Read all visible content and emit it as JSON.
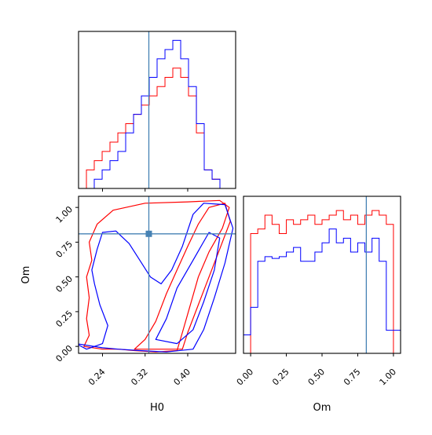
{
  "colors": {
    "series_a": "#ff0000",
    "series_b": "#0000ff",
    "truth": "#4682b4",
    "frame": "#000000"
  },
  "chart_data": [
    {
      "type": "histogram",
      "panel": "H0-marginal",
      "x_range": [
        0.195,
        0.49
      ],
      "bin_edges": [
        0.195,
        0.2098,
        0.2245,
        0.2393,
        0.254,
        0.2688,
        0.2835,
        0.2983,
        0.313,
        0.3278,
        0.3425,
        0.3573,
        0.372,
        0.3868,
        0.4015,
        0.4163,
        0.431,
        0.4458,
        0.4605,
        0.4753,
        0.49
      ],
      "series": [
        {
          "color_key": "series_a",
          "values": [
            0,
            2,
            3,
            4,
            5,
            6,
            7,
            8,
            9,
            10,
            11,
            12,
            13,
            12,
            10,
            6,
            2,
            1,
            0,
            0
          ]
        },
        {
          "color_key": "series_b",
          "values": [
            0,
            0,
            1,
            2,
            3,
            4,
            6,
            8,
            10,
            12,
            14,
            15,
            16,
            14,
            11,
            7,
            2,
            1,
            0,
            0
          ]
        }
      ],
      "truth_x": 0.327,
      "x_ticks": [
        0.24,
        0.32,
        0.4
      ]
    },
    {
      "type": "contour",
      "panel": "H0-Om-joint",
      "x_range": [
        0.195,
        0.49
      ],
      "y_range": [
        -0.05,
        1.08
      ],
      "xlabel": "H0",
      "ylabel": "Om",
      "x_ticks": [
        0.24,
        0.32,
        0.4
      ],
      "x_tick_labels": [
        "0.24",
        "0.32",
        "0.40"
      ],
      "y_ticks": [
        0.0,
        0.25,
        0.5,
        0.75,
        1.0
      ],
      "y_tick_labels": [
        "0.00",
        "0.25",
        "0.50",
        "0.75",
        "1.00"
      ],
      "truth": {
        "x": 0.327,
        "y": 0.81
      },
      "contours": [
        {
          "color_key": "series_a",
          "points": [
            [
              0.205,
              0.0
            ],
            [
              0.215,
              0.08
            ],
            [
              0.21,
              0.2
            ],
            [
              0.215,
              0.35
            ],
            [
              0.21,
              0.5
            ],
            [
              0.22,
              0.62
            ],
            [
              0.215,
              0.75
            ],
            [
              0.23,
              0.88
            ],
            [
              0.26,
              0.98
            ],
            [
              0.32,
              1.03
            ],
            [
              0.4,
              1.04
            ],
            [
              0.46,
              1.05
            ],
            [
              0.478,
              1.0
            ],
            [
              0.465,
              0.85
            ],
            [
              0.44,
              0.68
            ],
            [
              0.42,
              0.5
            ],
            [
              0.405,
              0.3
            ],
            [
              0.39,
              0.1
            ],
            [
              0.38,
              -0.03
            ],
            [
              0.34,
              -0.04
            ],
            [
              0.3,
              -0.03
            ],
            [
              0.27,
              -0.02
            ],
            [
              0.24,
              -0.02
            ],
            [
              0.205,
              0.0
            ]
          ]
        },
        {
          "color_key": "series_a",
          "points": [
            [
              0.3,
              -0.02
            ],
            [
              0.32,
              0.05
            ],
            [
              0.34,
              0.18
            ],
            [
              0.36,
              0.38
            ],
            [
              0.38,
              0.55
            ],
            [
              0.4,
              0.72
            ],
            [
              0.42,
              0.88
            ],
            [
              0.44,
              1.0
            ],
            [
              0.47,
              1.03
            ],
            [
              0.48,
              0.9
            ],
            [
              0.46,
              0.7
            ],
            [
              0.44,
              0.5
            ],
            [
              0.42,
              0.3
            ],
            [
              0.4,
              0.1
            ],
            [
              0.39,
              -0.02
            ],
            [
              0.3,
              -0.02
            ]
          ]
        },
        {
          "color_key": "series_b",
          "points": [
            [
              0.19,
              0.02
            ],
            [
              0.21,
              -0.02
            ],
            [
              0.24,
              0.02
            ],
            [
              0.25,
              0.15
            ],
            [
              0.235,
              0.3
            ],
            [
              0.225,
              0.45
            ],
            [
              0.22,
              0.55
            ],
            [
              0.23,
              0.7
            ],
            [
              0.24,
              0.82
            ],
            [
              0.265,
              0.83
            ],
            [
              0.29,
              0.74
            ],
            [
              0.31,
              0.62
            ],
            [
              0.33,
              0.5
            ],
            [
              0.35,
              0.45
            ],
            [
              0.37,
              0.55
            ],
            [
              0.39,
              0.72
            ],
            [
              0.41,
              0.95
            ],
            [
              0.43,
              1.03
            ],
            [
              0.47,
              1.02
            ],
            [
              0.485,
              0.85
            ],
            [
              0.47,
              0.6
            ],
            [
              0.45,
              0.35
            ],
            [
              0.43,
              0.12
            ],
            [
              0.41,
              -0.02
            ],
            [
              0.36,
              -0.04
            ],
            [
              0.31,
              -0.03
            ],
            [
              0.27,
              -0.02
            ],
            [
              0.24,
              -0.01
            ],
            [
              0.19,
              0.02
            ]
          ]
        },
        {
          "color_key": "series_b",
          "points": [
            [
              0.34,
              0.05
            ],
            [
              0.36,
              0.2
            ],
            [
              0.38,
              0.42
            ],
            [
              0.41,
              0.62
            ],
            [
              0.44,
              0.82
            ],
            [
              0.46,
              0.78
            ],
            [
              0.45,
              0.55
            ],
            [
              0.43,
              0.32
            ],
            [
              0.41,
              0.12
            ],
            [
              0.38,
              0.02
            ],
            [
              0.34,
              0.05
            ]
          ]
        }
      ]
    },
    {
      "type": "histogram",
      "panel": "Om-marginal",
      "x_range": [
        -0.05,
        1.05
      ],
      "xlabel": "Om",
      "bin_edges": [
        -0.05,
        0.0,
        0.05,
        0.1,
        0.15,
        0.2,
        0.25,
        0.3,
        0.35,
        0.4,
        0.45,
        0.5,
        0.55,
        0.6,
        0.65,
        0.7,
        0.75,
        0.8,
        0.85,
        0.9,
        0.95,
        1.0,
        1.05
      ],
      "series": [
        {
          "color_key": "series_a",
          "values": [
            0,
            13,
            13.5,
            15,
            14,
            13,
            14.5,
            14,
            14.5,
            15,
            14,
            14.5,
            15,
            15.5,
            14.5,
            15,
            14,
            15,
            15.5,
            15,
            14,
            0
          ]
        },
        {
          "color_key": "series_b",
          "values": [
            2,
            5,
            10,
            10.5,
            10.3,
            10.5,
            11,
            11.5,
            10,
            10,
            11,
            12,
            13.5,
            12,
            12.5,
            11,
            12,
            11,
            12.5,
            10,
            2.5,
            2.5
          ]
        }
      ],
      "truth_x": 0.81,
      "x_ticks": [
        0.0,
        0.25,
        0.5,
        0.75,
        1.0
      ],
      "x_tick_labels": [
        "0.00",
        "0.25",
        "0.50",
        "0.75",
        "1.00"
      ]
    }
  ]
}
